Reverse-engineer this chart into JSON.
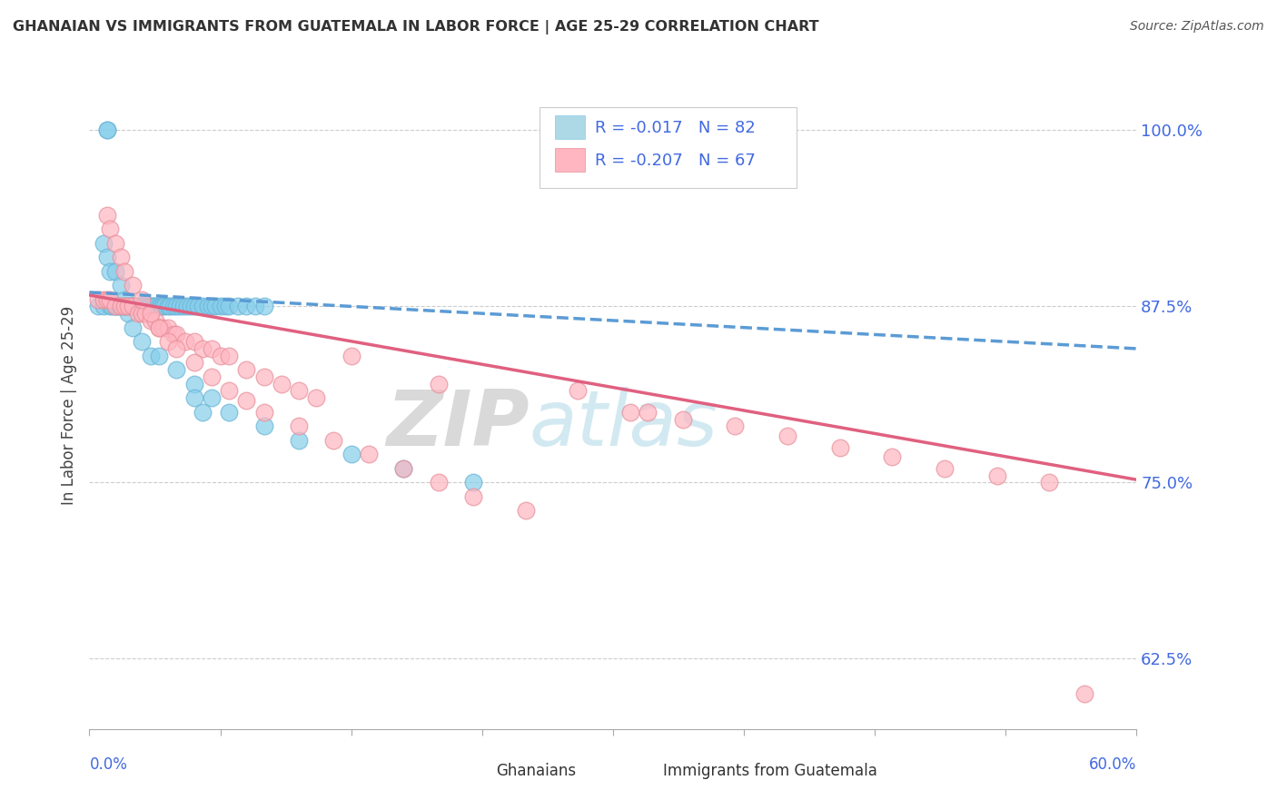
{
  "title": "GHANAIAN VS IMMIGRANTS FROM GUATEMALA IN LABOR FORCE | AGE 25-29 CORRELATION CHART",
  "source": "Source: ZipAtlas.com",
  "ylabel": "In Labor Force | Age 25-29",
  "xlim": [
    0.0,
    0.6
  ],
  "ylim": [
    0.575,
    1.035
  ],
  "y_ticks": [
    0.625,
    0.75,
    0.875,
    1.0
  ],
  "y_tick_labels": [
    "62.5%",
    "75.0%",
    "87.5%",
    "100.0%"
  ],
  "legend_r1": "R = -0.017",
  "legend_n1": "N = 82",
  "legend_r2": "R = -0.207",
  "legend_n2": "N = 67",
  "color_blue": "#87CEEB",
  "color_blue_edge": "#6BB5D8",
  "color_pink": "#FFB6C1",
  "color_pink_edge": "#E8909A",
  "color_blue_line": "#5B9BD5",
  "color_pink_line": "#E06080",
  "color_axis_label": "#4169E1",
  "watermark_zip": "ZIP",
  "watermark_atlas": "atlas",
  "ghana_x": [
    0.005,
    0.008,
    0.01,
    0.01,
    0.012,
    0.013,
    0.015,
    0.015,
    0.016,
    0.017,
    0.018,
    0.019,
    0.02,
    0.02,
    0.021,
    0.021,
    0.022,
    0.023,
    0.024,
    0.025,
    0.025,
    0.026,
    0.027,
    0.028,
    0.029,
    0.03,
    0.03,
    0.031,
    0.032,
    0.033,
    0.034,
    0.035,
    0.036,
    0.037,
    0.038,
    0.04,
    0.041,
    0.042,
    0.043,
    0.045,
    0.046,
    0.048,
    0.05,
    0.052,
    0.054,
    0.056,
    0.058,
    0.06,
    0.062,
    0.065,
    0.068,
    0.07,
    0.072,
    0.075,
    0.078,
    0.08,
    0.085,
    0.09,
    0.095,
    0.1,
    0.008,
    0.01,
    0.012,
    0.015,
    0.018,
    0.02,
    0.022,
    0.025,
    0.03,
    0.035,
    0.04,
    0.05,
    0.06,
    0.07,
    0.08,
    0.1,
    0.12,
    0.15,
    0.18,
    0.22,
    0.06,
    0.065
  ],
  "ghana_y": [
    0.875,
    0.875,
    1.0,
    1.0,
    0.875,
    0.875,
    0.875,
    0.875,
    0.875,
    0.875,
    0.875,
    0.875,
    0.875,
    0.875,
    0.875,
    0.875,
    0.875,
    0.875,
    0.875,
    0.875,
    0.875,
    0.875,
    0.875,
    0.875,
    0.875,
    0.875,
    0.875,
    0.875,
    0.875,
    0.875,
    0.875,
    0.875,
    0.875,
    0.875,
    0.875,
    0.875,
    0.875,
    0.875,
    0.875,
    0.875,
    0.875,
    0.875,
    0.875,
    0.875,
    0.875,
    0.875,
    0.875,
    0.875,
    0.875,
    0.875,
    0.875,
    0.875,
    0.875,
    0.875,
    0.875,
    0.875,
    0.875,
    0.875,
    0.875,
    0.875,
    0.92,
    0.91,
    0.9,
    0.9,
    0.89,
    0.88,
    0.87,
    0.86,
    0.85,
    0.84,
    0.84,
    0.83,
    0.82,
    0.81,
    0.8,
    0.79,
    0.78,
    0.77,
    0.76,
    0.75,
    0.81,
    0.8
  ],
  "guate_x": [
    0.005,
    0.008,
    0.01,
    0.012,
    0.015,
    0.018,
    0.02,
    0.022,
    0.025,
    0.028,
    0.03,
    0.032,
    0.035,
    0.038,
    0.04,
    0.042,
    0.045,
    0.048,
    0.05,
    0.055,
    0.06,
    0.065,
    0.07,
    0.075,
    0.08,
    0.09,
    0.1,
    0.11,
    0.12,
    0.13,
    0.01,
    0.012,
    0.015,
    0.018,
    0.02,
    0.025,
    0.03,
    0.035,
    0.04,
    0.045,
    0.05,
    0.06,
    0.07,
    0.08,
    0.09,
    0.1,
    0.12,
    0.14,
    0.16,
    0.18,
    0.2,
    0.22,
    0.25,
    0.28,
    0.31,
    0.34,
    0.37,
    0.4,
    0.43,
    0.46,
    0.49,
    0.52,
    0.55,
    0.15,
    0.2,
    0.32,
    0.57
  ],
  "guate_y": [
    0.88,
    0.88,
    0.88,
    0.88,
    0.875,
    0.875,
    0.875,
    0.875,
    0.875,
    0.87,
    0.87,
    0.87,
    0.865,
    0.865,
    0.86,
    0.86,
    0.86,
    0.855,
    0.855,
    0.85,
    0.85,
    0.845,
    0.845,
    0.84,
    0.84,
    0.83,
    0.825,
    0.82,
    0.815,
    0.81,
    0.94,
    0.93,
    0.92,
    0.91,
    0.9,
    0.89,
    0.88,
    0.87,
    0.86,
    0.85,
    0.845,
    0.835,
    0.825,
    0.815,
    0.808,
    0.8,
    0.79,
    0.78,
    0.77,
    0.76,
    0.75,
    0.74,
    0.73,
    0.815,
    0.8,
    0.795,
    0.79,
    0.783,
    0.775,
    0.768,
    0.76,
    0.755,
    0.75,
    0.84,
    0.82,
    0.8,
    0.6
  ]
}
